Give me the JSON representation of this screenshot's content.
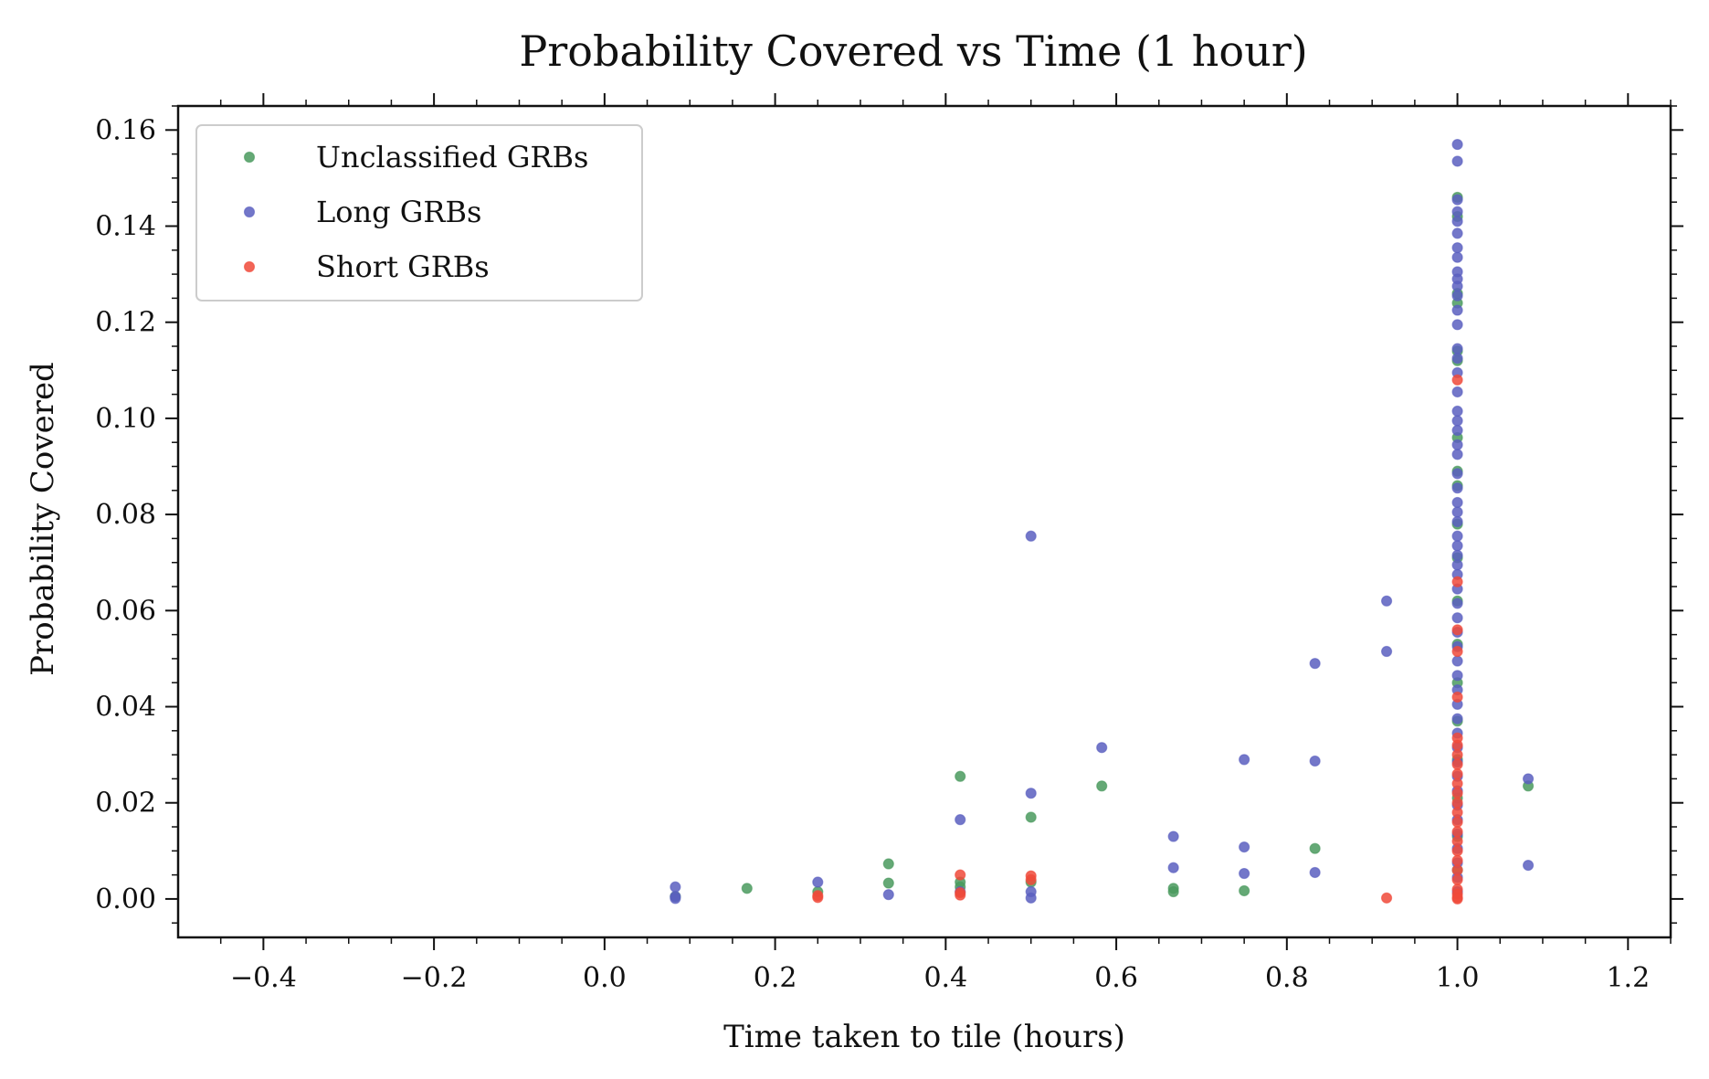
{
  "chart_data": {
    "type": "scatter",
    "title": "Probability Covered vs Time (1 hour)",
    "xlabel": "Time taken to tile (hours)",
    "ylabel": "Probability Covered",
    "xlim": [
      -0.5,
      1.25
    ],
    "ylim": [
      -0.008,
      0.165
    ],
    "xticks": [
      -0.4,
      -0.2,
      0.0,
      0.2,
      0.4,
      0.6,
      0.8,
      1.0,
      1.2
    ],
    "xtick_labels": [
      "−0.4",
      "−0.2",
      "0.0",
      "0.2",
      "0.4",
      "0.6",
      "0.8",
      "1.0",
      "1.2"
    ],
    "yticks": [
      0.0,
      0.02,
      0.04,
      0.06,
      0.08,
      0.1,
      0.12,
      0.14,
      0.16
    ],
    "ytick_labels": [
      "0.00",
      "0.02",
      "0.04",
      "0.06",
      "0.08",
      "0.10",
      "0.12",
      "0.14",
      "0.16"
    ],
    "grid": false,
    "legend_position": "top-left",
    "series": [
      {
        "name": "Unclassified GRBs",
        "color": "#4a9a5e",
        "points": [
          [
            0.083,
            0.0005
          ],
          [
            0.167,
            0.0022
          ],
          [
            0.25,
            0.0015
          ],
          [
            0.333,
            0.0073
          ],
          [
            0.333,
            0.0033
          ],
          [
            0.417,
            0.0255
          ],
          [
            0.417,
            0.0035
          ],
          [
            0.417,
            0.0025
          ],
          [
            0.5,
            0.017
          ],
          [
            0.5,
            0.0035
          ],
          [
            0.583,
            0.0235
          ],
          [
            0.667,
            0.0022
          ],
          [
            0.667,
            0.0015
          ],
          [
            0.75,
            0.0017
          ],
          [
            0.833,
            0.0105
          ],
          [
            1.083,
            0.0235
          ],
          [
            1.0,
            0.146
          ],
          [
            1.0,
            0.142
          ],
          [
            1.0,
            0.126
          ],
          [
            1.0,
            0.124
          ],
          [
            1.0,
            0.114
          ],
          [
            1.0,
            0.112
          ],
          [
            1.0,
            0.096
          ],
          [
            1.0,
            0.089
          ],
          [
            1.0,
            0.086
          ],
          [
            1.0,
            0.078
          ],
          [
            1.0,
            0.071
          ],
          [
            1.0,
            0.062
          ],
          [
            1.0,
            0.053
          ],
          [
            1.0,
            0.045
          ],
          [
            1.0,
            0.037
          ],
          [
            1.0,
            0.029
          ],
          [
            1.0,
            0.021
          ],
          [
            1.0,
            0.013
          ],
          [
            1.0,
            0.006
          ]
        ]
      },
      {
        "name": "Long GRBs",
        "color": "#5a5fc0",
        "points": [
          [
            0.083,
            0.0025
          ],
          [
            0.083,
            0.0005
          ],
          [
            0.083,
            0.0001
          ],
          [
            0.25,
            0.0035
          ],
          [
            0.333,
            0.0009
          ],
          [
            0.417,
            0.0165
          ],
          [
            0.417,
            0.0015
          ],
          [
            0.5,
            0.0755
          ],
          [
            0.5,
            0.022
          ],
          [
            0.5,
            0.0015
          ],
          [
            0.5,
            0.0002
          ],
          [
            0.583,
            0.0315
          ],
          [
            0.667,
            0.013
          ],
          [
            0.667,
            0.0065
          ],
          [
            0.75,
            0.029
          ],
          [
            0.75,
            0.0108
          ],
          [
            0.75,
            0.0053
          ],
          [
            0.833,
            0.049
          ],
          [
            0.833,
            0.0287
          ],
          [
            0.833,
            0.0055
          ],
          [
            0.917,
            0.062
          ],
          [
            0.917,
            0.0515
          ],
          [
            1.083,
            0.025
          ],
          [
            1.083,
            0.007
          ],
          [
            1.0,
            0.157
          ],
          [
            1.0,
            0.1535
          ],
          [
            1.0,
            0.1455
          ],
          [
            1.0,
            0.143
          ],
          [
            1.0,
            0.141
          ],
          [
            1.0,
            0.1385
          ],
          [
            1.0,
            0.1355
          ],
          [
            1.0,
            0.1335
          ],
          [
            1.0,
            0.1305
          ],
          [
            1.0,
            0.129
          ],
          [
            1.0,
            0.1275
          ],
          [
            1.0,
            0.1255
          ],
          [
            1.0,
            0.1225
          ],
          [
            1.0,
            0.1195
          ],
          [
            1.0,
            0.1145
          ],
          [
            1.0,
            0.1125
          ],
          [
            1.0,
            0.1095
          ],
          [
            1.0,
            0.1055
          ],
          [
            1.0,
            0.1015
          ],
          [
            1.0,
            0.0995
          ],
          [
            1.0,
            0.0975
          ],
          [
            1.0,
            0.0945
          ],
          [
            1.0,
            0.0925
          ],
          [
            1.0,
            0.0885
          ],
          [
            1.0,
            0.0855
          ],
          [
            1.0,
            0.0825
          ],
          [
            1.0,
            0.0805
          ],
          [
            1.0,
            0.0785
          ],
          [
            1.0,
            0.0755
          ],
          [
            1.0,
            0.0735
          ],
          [
            1.0,
            0.0715
          ],
          [
            1.0,
            0.0695
          ],
          [
            1.0,
            0.0675
          ],
          [
            1.0,
            0.0645
          ],
          [
            1.0,
            0.0615
          ],
          [
            1.0,
            0.0585
          ],
          [
            1.0,
            0.0555
          ],
          [
            1.0,
            0.0525
          ],
          [
            1.0,
            0.0495
          ],
          [
            1.0,
            0.0465
          ],
          [
            1.0,
            0.0435
          ],
          [
            1.0,
            0.0405
          ],
          [
            1.0,
            0.0375
          ],
          [
            1.0,
            0.0345
          ],
          [
            1.0,
            0.0315
          ],
          [
            1.0,
            0.0285
          ],
          [
            1.0,
            0.0255
          ],
          [
            1.0,
            0.0225
          ],
          [
            1.0,
            0.0195
          ],
          [
            1.0,
            0.0165
          ],
          [
            1.0,
            0.0135
          ],
          [
            1.0,
            0.0105
          ],
          [
            1.0,
            0.0075
          ],
          [
            1.0,
            0.0045
          ],
          [
            1.0,
            0.0015
          ]
        ]
      },
      {
        "name": "Short GRBs",
        "color": "#f04a3a",
        "points": [
          [
            0.25,
            0.0007
          ],
          [
            0.25,
            0.0003
          ],
          [
            0.417,
            0.005
          ],
          [
            0.417,
            0.0013
          ],
          [
            0.417,
            0.0008
          ],
          [
            0.5,
            0.0048
          ],
          [
            0.5,
            0.004
          ],
          [
            0.917,
            0.0002
          ],
          [
            1.0,
            0.108
          ],
          [
            1.0,
            0.066
          ],
          [
            1.0,
            0.056
          ],
          [
            1.0,
            0.0515
          ],
          [
            1.0,
            0.042
          ],
          [
            1.0,
            0.0335
          ],
          [
            1.0,
            0.032
          ],
          [
            1.0,
            0.03
          ],
          [
            1.0,
            0.028
          ],
          [
            1.0,
            0.026
          ],
          [
            1.0,
            0.024
          ],
          [
            1.0,
            0.022
          ],
          [
            1.0,
            0.02
          ],
          [
            1.0,
            0.018
          ],
          [
            1.0,
            0.016
          ],
          [
            1.0,
            0.014
          ],
          [
            1.0,
            0.012
          ],
          [
            1.0,
            0.01
          ],
          [
            1.0,
            0.008
          ],
          [
            1.0,
            0.006
          ],
          [
            1.0,
            0.004
          ],
          [
            1.0,
            0.002
          ],
          [
            1.0,
            0.001
          ],
          [
            1.0,
            0.0003
          ],
          [
            1.0,
            0.0
          ]
        ]
      }
    ]
  }
}
